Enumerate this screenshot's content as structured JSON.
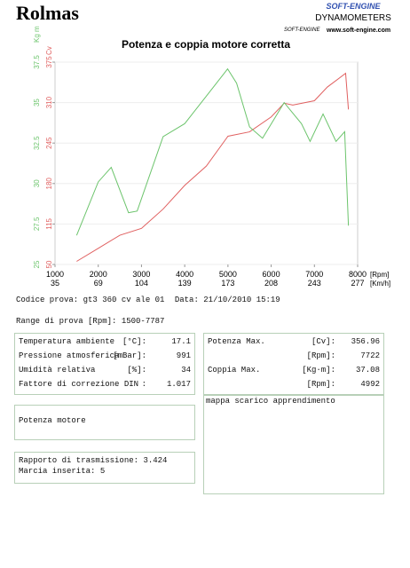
{
  "header": {
    "title": "Rolmas",
    "logo_brand": "SOFT-ENGINE",
    "logo_subtitle": "DYNAMOMETERS",
    "logo_small": "SOFT-ENGINE",
    "website": "www.soft-engine.com"
  },
  "chart_data": {
    "type": "line",
    "title": "Potenza e coppia motore corretta",
    "xlim": [
      1000,
      8000
    ],
    "xticks": [
      1000,
      2000,
      3000,
      4000,
      5000,
      6000,
      7000,
      8000
    ],
    "x_label": "[Rpm]",
    "speed_ticks": [
      35,
      69,
      104,
      139,
      173,
      208,
      243,
      277
    ],
    "speed_label": "[Km/h]",
    "ylim": [
      50,
      375
    ],
    "yticks": [
      50,
      115,
      180,
      245,
      310,
      375
    ],
    "ylabel": "Cv",
    "y2lim": [
      25,
      37.5
    ],
    "y2ticks": [
      25,
      27.5,
      30,
      32.5,
      35,
      37.5
    ],
    "y2label": "Kg m",
    "grid": true,
    "series": [
      {
        "name": "Potenza",
        "color": "#e06060",
        "x": [
          1500,
          2000,
          2500,
          3000,
          3500,
          4000,
          4500,
          5000,
          5500,
          6000,
          6300,
          6500,
          7000,
          7300,
          7722,
          7787
        ],
        "values": [
          55,
          76,
          97,
          108,
          139,
          177,
          208,
          256,
          263,
          287,
          309,
          306,
          313,
          335,
          357,
          299
        ]
      },
      {
        "name": "Coppia",
        "color": "#6cc46c",
        "axis": "y2",
        "x": [
          1500,
          2000,
          2300,
          2700,
          2900,
          3500,
          4000,
          4500,
          4992,
          5200,
          5500,
          5800,
          6300,
          6700,
          6900,
          7200,
          7500,
          7700,
          7787
        ],
        "values": [
          26.8,
          30.1,
          31.0,
          28.2,
          28.3,
          32.9,
          33.7,
          35.4,
          37.08,
          36.2,
          33.5,
          32.8,
          35.0,
          33.7,
          32.6,
          34.3,
          32.6,
          33.2,
          27.4
        ]
      }
    ]
  },
  "info": {
    "code_label": "Codice prova:",
    "code_value": "gt3 360 cv ale 01",
    "date_label": "Data:",
    "date_value": "21/10/2010 15:19",
    "range_label": "Range di prova [Rpm]:",
    "range_value": "1500-7787"
  },
  "conditions": [
    {
      "label": "Temperatura ambiente",
      "unit": "[°C]:",
      "value": "17.1"
    },
    {
      "label": "Pressione atmosferica",
      "unit": "[mBar]:",
      "value": "991"
    },
    {
      "label": "Umidità relativa",
      "unit": "[%]:",
      "value": "34"
    },
    {
      "label": "Fattore di correzione DIN",
      "unit": ":",
      "value": "1.017"
    }
  ],
  "results": [
    {
      "label": "Potenza Max.",
      "unit": "[Cv]:",
      "value": "356.96"
    },
    {
      "unit": "[Rpm]:",
      "value": "7722"
    },
    {
      "label": "Coppia Max.",
      "unit": "[Kg·m]:",
      "value": "37.08"
    },
    {
      "unit": "[Rpm]:",
      "value": "4992"
    }
  ],
  "notes": {
    "engine": "Potenza motore",
    "map": "mappa scarico apprendimento",
    "ratio_label": "Rapporto di trasmissione:",
    "ratio_value": "3.424",
    "gear_label": "Marcia inserita:",
    "gear_value": "5"
  }
}
